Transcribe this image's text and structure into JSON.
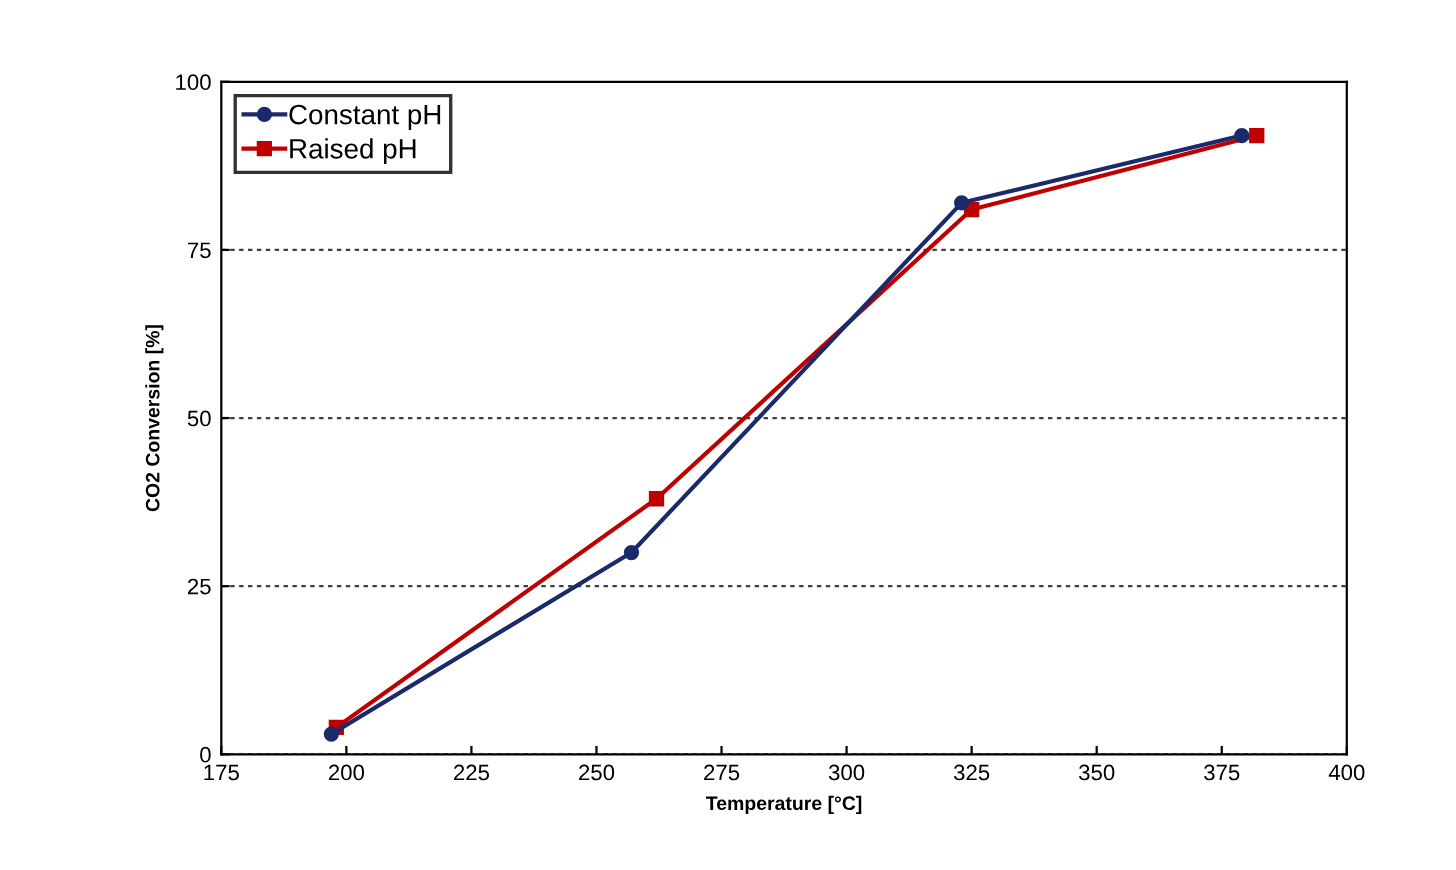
{
  "chart_data": {
    "type": "line",
    "xlabel": "Temperature [°C]",
    "ylabel": "CO2 Conversion [%]",
    "xlim": [
      175,
      400
    ],
    "xticks": [
      175,
      200,
      225,
      250,
      275,
      300,
      325,
      350,
      375,
      400
    ],
    "ylim": [
      0,
      100
    ],
    "yticks": [
      0,
      25,
      50,
      75,
      100
    ],
    "grid": "y",
    "legend": "top left",
    "series": [
      {
        "name": "Constant pH",
        "color": "#1b2a6b",
        "marker": "circle",
        "x": [
          197,
          257,
          323,
          379
        ],
        "values": [
          3,
          30,
          82,
          92
        ]
      },
      {
        "name": "Raised pH",
        "color": "#c00000",
        "marker": "square",
        "x": [
          198,
          262,
          325,
          382
        ],
        "values": [
          4,
          38,
          81,
          92
        ]
      }
    ]
  }
}
